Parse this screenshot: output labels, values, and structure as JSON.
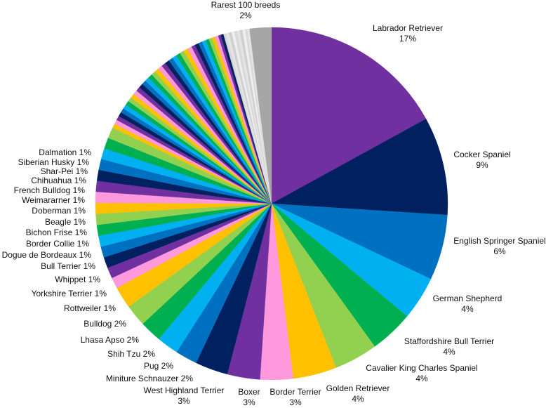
{
  "chart_data": {
    "type": "pie",
    "title": "",
    "start": "top",
    "direction": "clockwise",
    "palette": [
      "#7030a0",
      "#002060",
      "#0070c0",
      "#00b0f0",
      "#00b050",
      "#92d050",
      "#ffc000",
      "#ff99dd"
    ],
    "gray_colors": [
      "#d9d9d9",
      "#e4e4e4",
      "#cfcfcf",
      "#eeeeee"
    ],
    "rarest_color": "#a6a6a6",
    "labeled": [
      {
        "name": "Labrador Retriever",
        "label": "17%",
        "value": 17
      },
      {
        "name": "Cocker Spaniel",
        "label": "9%",
        "value": 9
      },
      {
        "name": "English Springer Spaniel",
        "label": "6%",
        "value": 6
      },
      {
        "name": "German Shepherd",
        "label": "4%",
        "value": 4
      },
      {
        "name": "Staffordshire Bull Terrier",
        "label": "4%",
        "value": 4
      },
      {
        "name": "Cavalier King Charles Spaniel",
        "label": "4%",
        "value": 4
      },
      {
        "name": "Golden Retriever",
        "label": "4%",
        "value": 4
      },
      {
        "name": "Border Terrier",
        "label": "3%",
        "value": 3
      },
      {
        "name": "Boxer",
        "label": "3%",
        "value": 3
      },
      {
        "name": "West Highland Terrier",
        "label": "3%",
        "value": 3
      },
      {
        "name": "Miniture Schnauzer",
        "label": "2%",
        "value": 2
      },
      {
        "name": "Pug",
        "label": "2%",
        "value": 2
      },
      {
        "name": "Shih Tzu",
        "label": "2%",
        "value": 2
      },
      {
        "name": "Lhasa Apso",
        "label": "2%",
        "value": 2
      },
      {
        "name": "Bulldog",
        "label": "2%",
        "value": 2
      },
      {
        "name": "Rottweiler",
        "label": "1%",
        "value": 1
      },
      {
        "name": "Yorkshire Terrier",
        "label": "1%",
        "value": 1
      },
      {
        "name": "Whippet",
        "label": "1%",
        "value": 1
      },
      {
        "name": "Bull Terrier",
        "label": "1%",
        "value": 1
      },
      {
        "name": "Dogue de Bordeaux ",
        "label": "1%",
        "value": 1
      },
      {
        "name": "Border Collie",
        "label": "1%",
        "value": 1
      },
      {
        "name": "Bichon Frise",
        "label": "1%",
        "value": 1
      },
      {
        "name": "Beagle",
        "label": "1%",
        "value": 1
      },
      {
        "name": "Doberman",
        "label": "1%",
        "value": 1
      },
      {
        "name": "Weimararner",
        "label": "1%",
        "value": 1
      },
      {
        "name": "French Bulldog",
        "label": "1%",
        "value": 1
      },
      {
        "name": "Chihuahua",
        "label": "1%",
        "value": 1
      },
      {
        "name": "Shar-Pei",
        "label": "1%",
        "value": 1
      },
      {
        "name": "Siberian Husky",
        "label": "1%",
        "value": 1
      },
      {
        "name": "Dalmation",
        "label": "1%",
        "value": 1
      }
    ],
    "unlabeled_colored_values": [
      0.4,
      0.4,
      0.4,
      0.4,
      0.4,
      0.4,
      0.4,
      0.4,
      0.4,
      0.4,
      0.4,
      0.4,
      0.4,
      0.4,
      0.4,
      0.4,
      0.4,
      0.4,
      0.4,
      0.4,
      0.4,
      0.4,
      0.4,
      0.4,
      0.4,
      0.4,
      0.35,
      0.35,
      0.35,
      0.35,
      0.3,
      0.3,
      0.3,
      0.3,
      0.25,
      0.25
    ],
    "unlabeled_gray_values": [
      0.25,
      0.25,
      0.25,
      0.25,
      0.25,
      0.25,
      0.25,
      0.25,
      0.2,
      0.2
    ],
    "rarest": {
      "name": "Rarest 100 breeds",
      "label": "2%",
      "value": 2
    }
  }
}
